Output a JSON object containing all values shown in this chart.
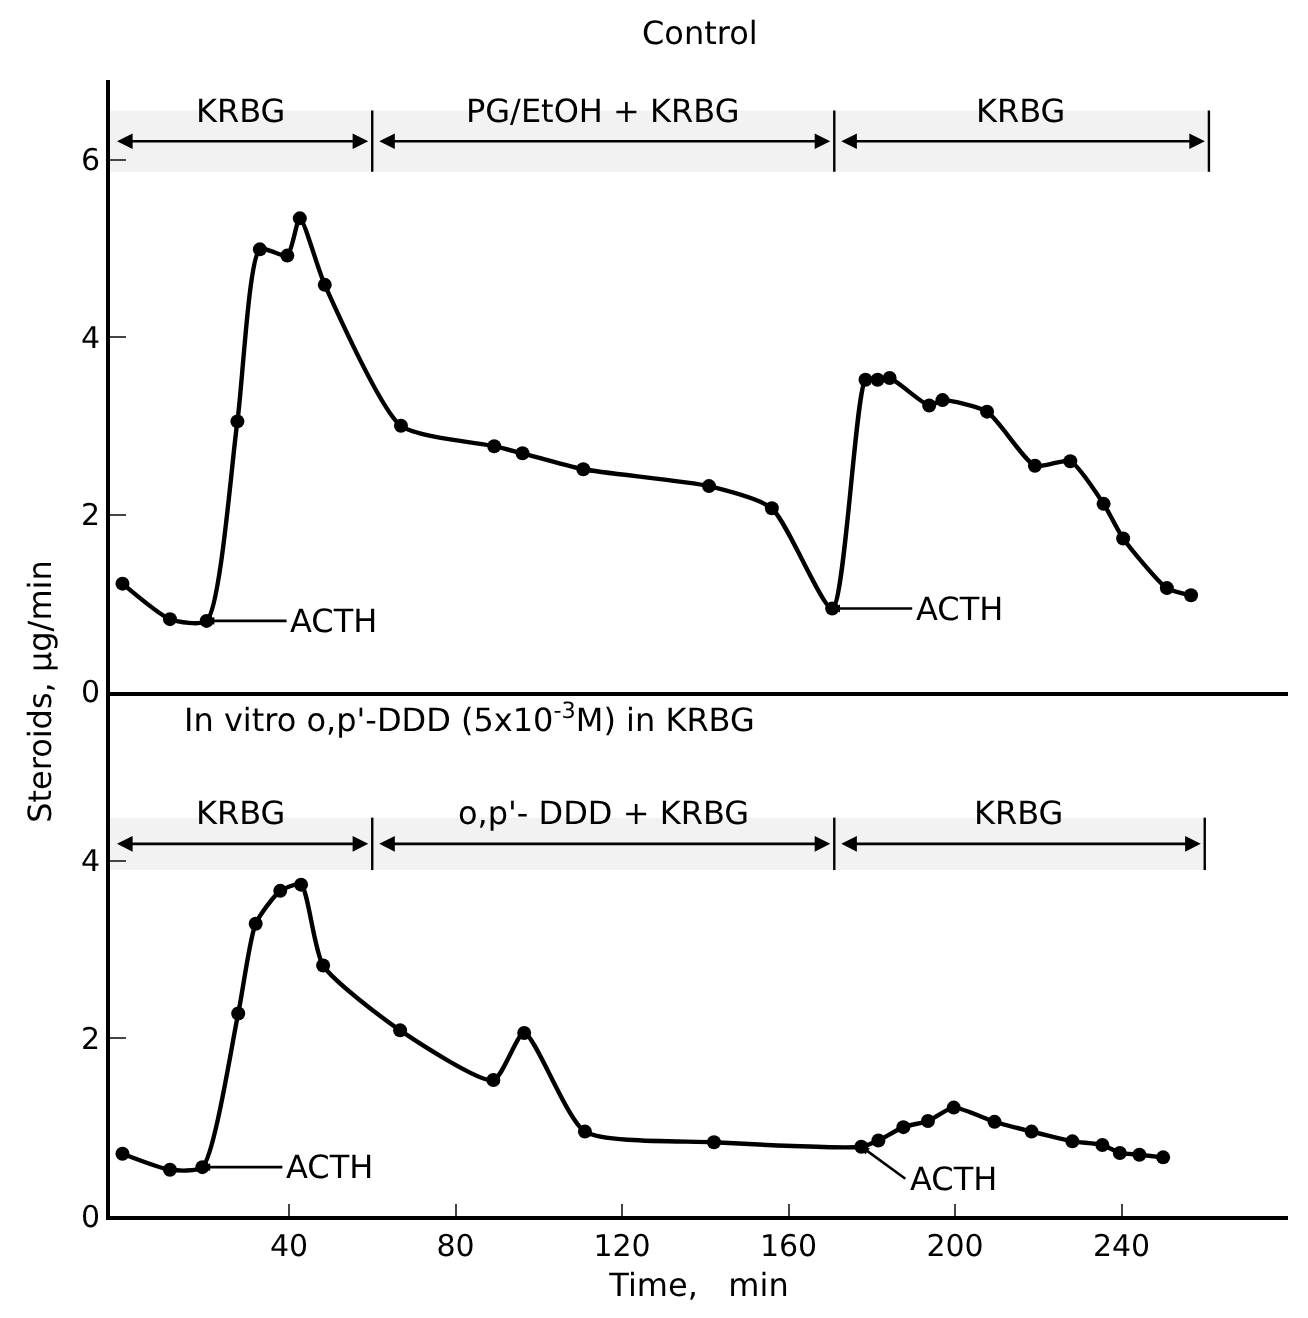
{
  "chart_data": [
    {
      "type": "line",
      "title": "Control",
      "ylabel": "Steroids, μg/min",
      "xlim": [
        -3,
        280
      ],
      "ylim": [
        0,
        6.9
      ],
      "yticks": [
        0,
        2,
        4,
        6
      ],
      "tick_labels": "y",
      "grid": false,
      "marker": "circle",
      "line_style": "solid",
      "series": [
        {
          "color": "#000000",
          "x": [
            0,
            11.4,
            20.2,
            27.6,
            33,
            39.6,
            42.6,
            48.6,
            66.9,
            89.3,
            96.1,
            110.7,
            140.9,
            156,
            170.5,
            178.5,
            181.4,
            184.3,
            193.8,
            197,
            207.7,
            219.2,
            227.7,
            235.7,
            240.4,
            250.9,
            256.7
          ],
          "values": [
            1.22,
            0.82,
            0.8,
            3.05,
            4.99,
            4.92,
            5.34,
            4.59,
            3.0,
            2.77,
            2.69,
            2.51,
            2.32,
            2.07,
            0.94,
            3.52,
            3.52,
            3.54,
            3.23,
            3.29,
            3.16,
            2.55,
            2.6,
            2.12,
            1.73,
            1.17,
            1.09
          ]
        }
      ],
      "bands": [
        {
          "axis": "x",
          "from": -3,
          "to": 60,
          "label": "KRBG"
        },
        {
          "axis": "x",
          "from": 60,
          "to": 171,
          "label": "PG/EtOH + KRBG"
        },
        {
          "axis": "x",
          "from": 171,
          "to": 261,
          "label": "KRBG"
        }
      ],
      "ref_lines": [
        {
          "axis": "x",
          "value": 60
        },
        {
          "axis": "x",
          "value": 171
        },
        {
          "axis": "x",
          "value": 261
        }
      ],
      "annotations": [
        {
          "text": "ACTH",
          "x": 20.2,
          "y": 0.8
        },
        {
          "text": "ACTH",
          "x": 170.5,
          "y": 0.94
        }
      ]
    },
    {
      "type": "line",
      "title": "In vitro o,p'-DDD (5x10$^{-3}$M) in KRBG",
      "xlabel": "Time,   min",
      "xlim": [
        -3,
        280
      ],
      "ylim": [
        0,
        5.9
      ],
      "xticks": [
        40,
        80,
        120,
        160,
        200,
        240
      ],
      "yticks": [
        0,
        2,
        4
      ],
      "grid": false,
      "marker": "circle",
      "line_style": "solid",
      "series": [
        {
          "color": "#000000",
          "x": [
            0,
            11.4,
            19.2,
            27.8,
            32,
            37.9,
            42.9,
            48.2,
            66.7,
            89.1,
            96.5,
            111.1,
            142.1,
            177.5,
            181.6,
            187.6,
            193.5,
            199.7,
            209.5,
            218.4,
            228.2,
            235.4,
            239.6,
            244.3,
            250
          ],
          "values": [
            0.7,
            0.52,
            0.55,
            2.28,
            3.29,
            3.66,
            3.73,
            2.82,
            2.09,
            1.53,
            2.06,
            0.95,
            0.83,
            0.78,
            0.85,
            1.0,
            1.07,
            1.22,
            1.06,
            0.95,
            0.84,
            0.8,
            0.71,
            0.69,
            0.66
          ]
        }
      ],
      "bands": [
        {
          "axis": "x",
          "from": -3,
          "to": 60,
          "label": "KRBG"
        },
        {
          "axis": "x",
          "from": 60,
          "to": 171,
          "label": "o,p'- DDD + KRBG"
        },
        {
          "axis": "x",
          "from": 171,
          "to": 260,
          "label": "KRBG"
        }
      ],
      "ref_lines": [
        {
          "axis": "x",
          "value": 60
        },
        {
          "axis": "x",
          "value": 171
        },
        {
          "axis": "x",
          "value": 260
        }
      ],
      "annotations": [
        {
          "text": "ACTH",
          "x": 19.2,
          "y": 0.55
        },
        {
          "text": "ACTH",
          "x": 177.5,
          "y": 0.78
        }
      ]
    }
  ]
}
